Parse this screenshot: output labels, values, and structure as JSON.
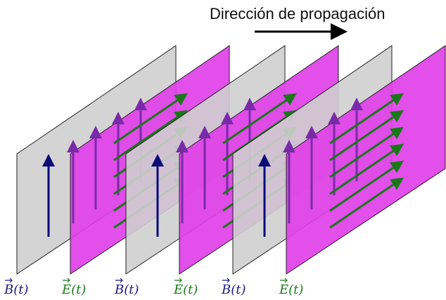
{
  "title": "Dirección de propagación",
  "colors": {
    "gray_plane": "#cfcfcf",
    "magenta_plane": "#e040e8",
    "b_arrow": "#0a0a78",
    "e_arrow": "#187818",
    "b_arrow_on_magenta": "#7a2aa8",
    "label_b": "#1a1a80",
    "label_e": "#1a7a1a",
    "title_arrow": "#000000"
  },
  "labels": [
    {
      "text": "B(t)",
      "field": "B"
    },
    {
      "text": "E(t)",
      "field": "E"
    },
    {
      "text": "B(t)",
      "field": "B"
    },
    {
      "text": "E(t)",
      "field": "E"
    },
    {
      "text": "B(t)",
      "field": "B"
    },
    {
      "text": "E(t)",
      "field": "E"
    }
  ],
  "planes": [
    {
      "type": "gray",
      "b_arrows": 1,
      "e_arrows": 0
    },
    {
      "type": "magenta",
      "b_arrows": 4,
      "e_arrows": 6
    },
    {
      "type": "gray",
      "b_arrows": 1,
      "e_arrows": 0
    },
    {
      "type": "magenta",
      "b_arrows": 4,
      "e_arrows": 6
    },
    {
      "type": "gray",
      "b_arrows": 1,
      "e_arrows": 0
    },
    {
      "type": "magenta",
      "b_arrows": 4,
      "e_arrows": 6
    }
  ]
}
